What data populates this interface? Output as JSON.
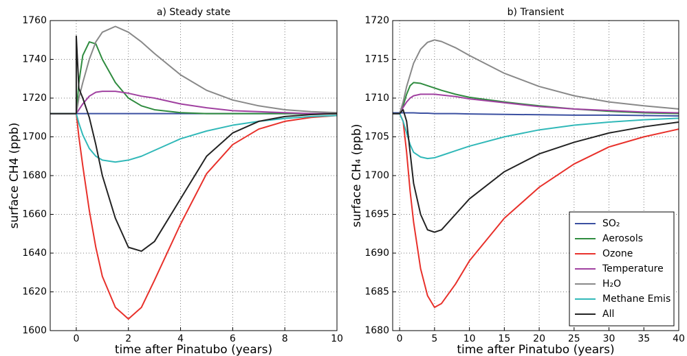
{
  "chart_data": [
    {
      "type": "line",
      "title": "a) Steady state",
      "xlabel": "time after Pinatubo (years)",
      "ylabel": "surface CH4 (ppb)",
      "x": [
        -1,
        0,
        0,
        0.1,
        0.25,
        0.5,
        0.75,
        1,
        1.5,
        2,
        2.5,
        3,
        4,
        5,
        6,
        7,
        8,
        9,
        10
      ],
      "xlim": [
        -1,
        10
      ],
      "xticks": [
        0,
        2,
        4,
        6,
        8,
        10
      ],
      "ylim": [
        1600,
        1760
      ],
      "yticks": [
        1600,
        1620,
        1640,
        1660,
        1680,
        1700,
        1720,
        1740,
        1760
      ],
      "grid": true,
      "series": [
        {
          "color": "#3a4fa0",
          "values": [
            1712,
            1712,
            1712,
            1712,
            1712,
            1712,
            1712,
            1712,
            1712,
            1712,
            1712,
            1712,
            1712,
            1712,
            1712,
            1712,
            1712,
            1712,
            1712
          ]
        },
        {
          "color": "#2e8b3e",
          "values": [
            1712,
            1712,
            1712,
            1728,
            1742,
            1749,
            1748,
            1740,
            1728,
            1720,
            1716,
            1714,
            1712.5,
            1712,
            1712,
            1712,
            1712,
            1712,
            1712
          ]
        },
        {
          "color": "#e8302a",
          "values": [
            1712,
            1712,
            1712,
            1700,
            1685,
            1662,
            1643,
            1628,
            1612,
            1606,
            1612,
            1626,
            1655,
            1681,
            1696,
            1704,
            1708,
            1710,
            1711
          ]
        },
        {
          "color": "#a040a0",
          "values": [
            1712,
            1712,
            1712,
            1714,
            1717,
            1721,
            1723,
            1723.5,
            1723.5,
            1722.5,
            1721,
            1720,
            1717,
            1715,
            1713.5,
            1713,
            1712.5,
            1712,
            1712
          ]
        },
        {
          "color": "#888888",
          "values": [
            1712,
            1712,
            1712,
            1720,
            1728,
            1740,
            1749,
            1754,
            1757,
            1754,
            1749,
            1743,
            1732,
            1724,
            1719,
            1716,
            1714,
            1713,
            1712.5
          ]
        },
        {
          "color": "#30b8b8",
          "values": [
            1712,
            1712,
            1712,
            1707,
            1701,
            1694,
            1690,
            1688,
            1687,
            1688,
            1690,
            1693,
            1699,
            1703,
            1706,
            1708,
            1709.5,
            1710.5,
            1711
          ]
        },
        {
          "color": "#222222",
          "values": [
            1712,
            1712,
            1752,
            1725,
            1720,
            1710,
            1696,
            1680,
            1658,
            1643,
            1641,
            1646,
            1668,
            1690,
            1702,
            1708,
            1710.5,
            1711.5,
            1712
          ]
        }
      ]
    },
    {
      "type": "line",
      "title": "b) Transient",
      "xlabel": "time after Pinatubo (years)",
      "ylabel": "surface CH₄ (ppb)",
      "x": [
        -1,
        0,
        0.5,
        1,
        1.5,
        2,
        3,
        4,
        5,
        6,
        8,
        10,
        15,
        20,
        25,
        30,
        35,
        40
      ],
      "xlim": [
        -1,
        40
      ],
      "xticks": [
        0,
        5,
        10,
        15,
        20,
        25,
        30,
        35,
        40
      ],
      "ylim": [
        1680,
        1720
      ],
      "yticks": [
        1680,
        1685,
        1690,
        1695,
        1700,
        1705,
        1710,
        1715,
        1720
      ],
      "grid": true,
      "legend": "lower right",
      "series": [
        {
          "name": "SO₂",
          "color": "#3a4fa0",
          "values": [
            1708.1,
            1708.1,
            1708.1,
            1708.1,
            1708.1,
            1708.1,
            1708.05,
            1708.05,
            1708,
            1708,
            1708,
            1707.95,
            1707.9,
            1707.85,
            1707.8,
            1707.8,
            1707.75,
            1707.7
          ]
        },
        {
          "name": "Aerosols",
          "color": "#2e8b3e",
          "values": [
            1708,
            1708,
            1709,
            1710.5,
            1711.6,
            1712,
            1711.9,
            1711.6,
            1711.3,
            1711,
            1710.5,
            1710.1,
            1709.5,
            1709,
            1708.6,
            1708.3,
            1708.1,
            1708
          ]
        },
        {
          "name": "Ozone",
          "color": "#e8302a",
          "values": [
            1708,
            1708,
            1707,
            1703,
            1698,
            1694,
            1688,
            1684.5,
            1683,
            1683.5,
            1686,
            1689,
            1694.5,
            1698.5,
            1701.5,
            1703.7,
            1705,
            1706
          ]
        },
        {
          "name": "Temperature",
          "color": "#a040a0",
          "values": [
            1708,
            1708,
            1708.8,
            1709.5,
            1710,
            1710.3,
            1710.5,
            1710.5,
            1710.5,
            1710.4,
            1710.2,
            1709.9,
            1709.4,
            1708.9,
            1708.6,
            1708.4,
            1708.2,
            1708.1
          ]
        },
        {
          "name": "H₂O",
          "color": "#888888",
          "values": [
            1708,
            1708,
            1709.5,
            1711.5,
            1713,
            1714.5,
            1716.3,
            1717.2,
            1717.5,
            1717.3,
            1716.5,
            1715.5,
            1713.2,
            1711.5,
            1710.3,
            1709.5,
            1709,
            1708.6
          ]
        },
        {
          "name": "Methane Emis",
          "color": "#30b8b8",
          "values": [
            1708,
            1708,
            1707,
            1705.5,
            1704,
            1703,
            1702.4,
            1702.2,
            1702.3,
            1702.6,
            1703.2,
            1703.8,
            1705,
            1705.9,
            1706.5,
            1706.9,
            1707.2,
            1707.4
          ]
        },
        {
          "name": "All",
          "color": "#222222",
          "values": [
            1708,
            1708,
            1708.5,
            1707,
            1703,
            1699,
            1695,
            1693,
            1692.7,
            1693,
            1695,
            1697,
            1700.5,
            1702.8,
            1704.3,
            1705.5,
            1706.3,
            1706.9
          ]
        }
      ]
    }
  ]
}
